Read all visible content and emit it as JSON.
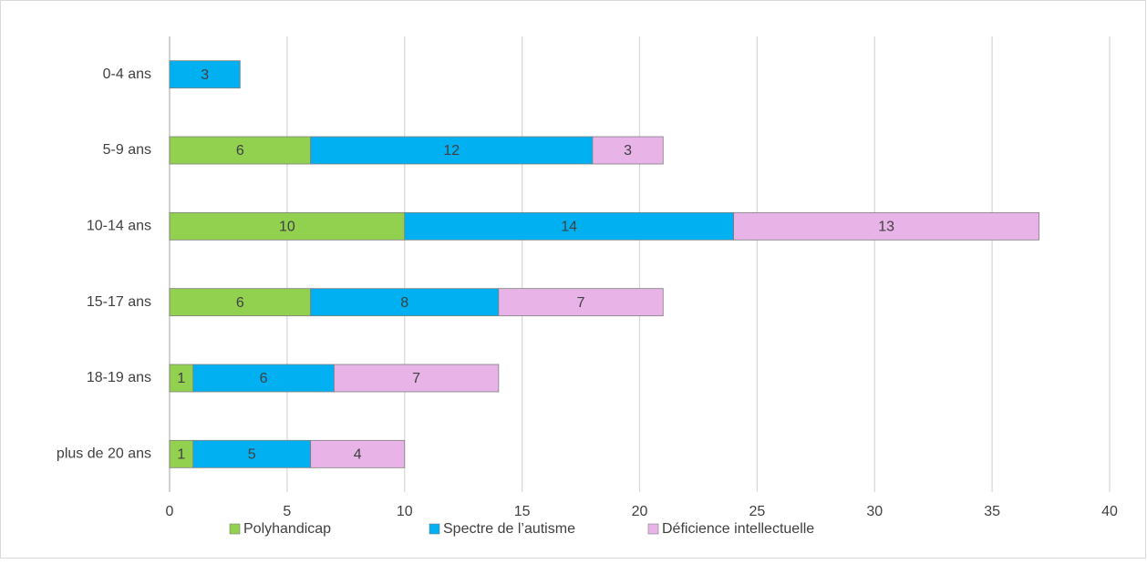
{
  "chart_data": {
    "type": "stacked-bar-horizontal",
    "categories": [
      "0-4 ans",
      "5-9 ans",
      "10-14 ans",
      "15-17 ans",
      "18-19 ans",
      "plus de 20 ans"
    ],
    "series": [
      {
        "name": "Polyhandicap",
        "color": "#92d050",
        "values": [
          null,
          6,
          10,
          6,
          1,
          1
        ]
      },
      {
        "name": "Spectre de l’autisme",
        "color": "#00b0f0",
        "values": [
          3,
          12,
          14,
          8,
          6,
          5
        ]
      },
      {
        "name": "Déficience intellectuelle",
        "color": "#e8b4e8",
        "values": [
          null,
          3,
          13,
          7,
          7,
          4
        ]
      }
    ],
    "xlim": [
      0,
      40
    ],
    "xticks": [
      0,
      5,
      10,
      15,
      20,
      25,
      30,
      35,
      40
    ],
    "grid": true,
    "legend": "bottom"
  }
}
